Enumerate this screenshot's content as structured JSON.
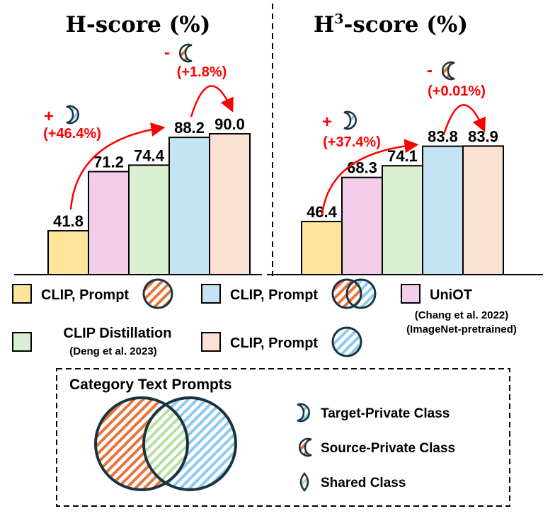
{
  "chart_data": [
    {
      "type": "bar",
      "title": "H-score (%)",
      "categories": [
        "CLIP, Prompt (source-private)",
        "UniOT",
        "CLIP Distillation",
        "CLIP, Prompt (source-private + shared + target-private)",
        "CLIP, Prompt (target-private)"
      ],
      "values": [
        41.8,
        71.2,
        74.4,
        88.2,
        90.0
      ],
      "value_labels": [
        "41.8",
        "71.2",
        "74.4",
        "88.2",
        "90.0"
      ],
      "ylim": [
        20,
        95
      ],
      "annotations": [
        {
          "sign": "+",
          "icon": "target-private-moon-icon",
          "text": "(+46.4%)",
          "from": 0,
          "to": 3
        },
        {
          "sign": "-",
          "icon": "source-private-moon-icon",
          "text": "(+1.8%)",
          "from": 3,
          "to": 4
        }
      ]
    },
    {
      "type": "bar",
      "title": "H",
      "title_sup": "3",
      "title_rest": "-score (%)",
      "categories": [
        "CLIP, Prompt (source-private)",
        "UniOT",
        "CLIP Distillation",
        "CLIP, Prompt (source-private + shared + target-private)",
        "CLIP, Prompt (target-private)"
      ],
      "values": [
        46.4,
        68.3,
        74.1,
        83.8,
        83.9
      ],
      "value_labels": [
        "46.4",
        "68.3",
        "74.1",
        "83.8",
        "83.9"
      ],
      "ylim": [
        20,
        95
      ],
      "annotations": [
        {
          "sign": "+",
          "icon": "target-private-moon-icon",
          "text": "(+37.4%)",
          "from": 0,
          "to": 3
        },
        {
          "sign": "-",
          "icon": "source-private-moon-icon",
          "text": "(+0.01%)",
          "from": 3,
          "to": 4
        }
      ]
    }
  ],
  "colors": [
    "#fde69a",
    "#f1cdea",
    "#d9f0d2",
    "#c4e4f4",
    "#fbe1d4"
  ],
  "legend": {
    "items": [
      {
        "label": "CLIP, Prompt",
        "sub": ""
      },
      {
        "label": "CLIP, Prompt",
        "sub": ""
      },
      {
        "label": "UniOT",
        "sub": "(Chang et al. 2022)",
        "sub2": "(ImageNet-pretrained)"
      },
      {
        "label": "CLIP Distillation",
        "sub": "(Deng et al. 2023)"
      },
      {
        "label": "CLIP, Prompt",
        "sub": ""
      }
    ]
  },
  "prompts_box": {
    "title": "Category Text Prompts",
    "items": [
      "Target-Private Class",
      "Source-Private Class",
      "Shared Class"
    ]
  }
}
